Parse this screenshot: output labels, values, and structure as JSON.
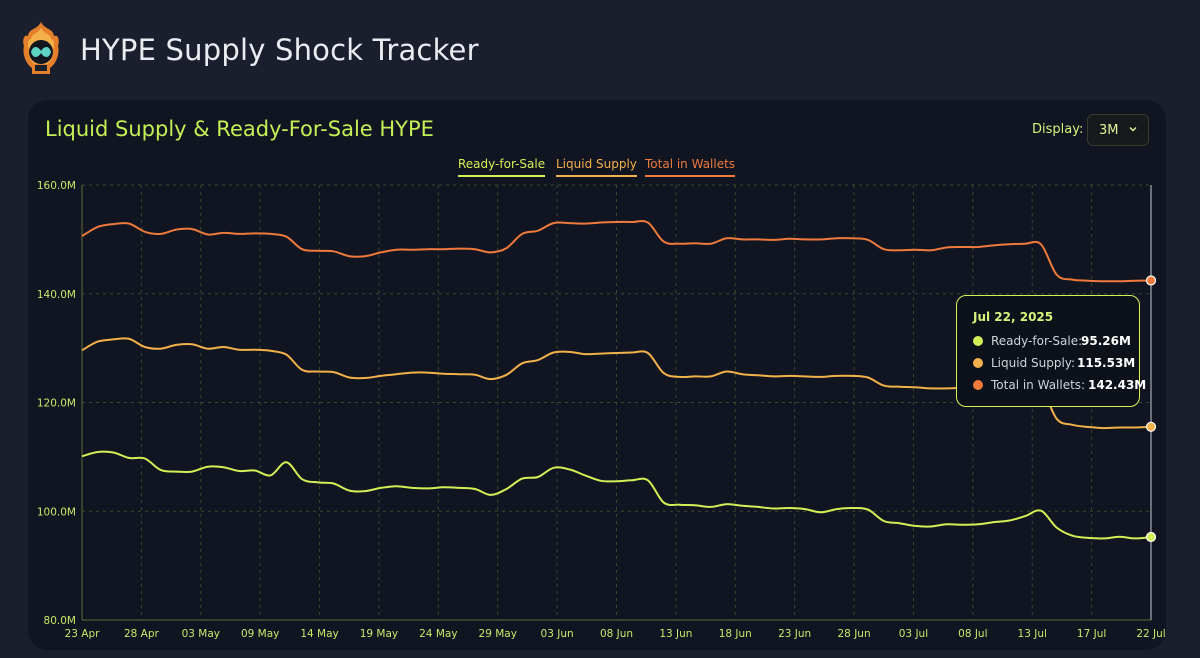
{
  "app": {
    "title": "HYPE Supply Shock Tracker"
  },
  "controls": {
    "display_label": "Display:",
    "display_value": "3M"
  },
  "colors": {
    "ready": "#d4ef56",
    "liquid": "#f3b14b",
    "total": "#ef7a3c",
    "axis_text": "#c9e86a"
  },
  "tooltip": {
    "date": "Jul 22, 2025",
    "rows": [
      {
        "label": "Ready-for-Sale:",
        "value": "95.26M"
      },
      {
        "label": "Liquid Supply:",
        "value": "115.53M"
      },
      {
        "label": "Total in Wallets:",
        "value": "142.43M"
      }
    ]
  },
  "chart_data": {
    "type": "line",
    "title": "Liquid Supply & Ready-For-Sale HYPE",
    "legend_position": "top-center",
    "grid": true,
    "ylim": [
      80,
      160
    ],
    "y_ticks": [
      "80.0M",
      "100.0M",
      "120.0M",
      "140.0M",
      "160.0M"
    ],
    "x_ticks": [
      "23 Apr",
      "28 Apr",
      "03 May",
      "09 May",
      "14 May",
      "19 May",
      "24 May",
      "29 May",
      "03 Jun",
      "08 Jun",
      "13 Jun",
      "18 Jun",
      "23 Jun",
      "28 Jun",
      "03 Jul",
      "08 Jul",
      "13 Jul",
      "17 Jul",
      "22 Jul"
    ],
    "series": [
      {
        "name": "Ready-for-Sale",
        "color": "#d4ef56",
        "values": [
          110.1,
          110.9,
          110.8,
          109.8,
          109.7,
          107.6,
          107.3,
          107.3,
          108.2,
          108.1,
          107.4,
          107.5,
          106.6,
          109.0,
          105.9,
          105.3,
          105.1,
          103.8,
          103.7,
          104.3,
          104.6,
          104.3,
          104.2,
          104.4,
          104.3,
          104.1,
          103.0,
          104.1,
          106.0,
          106.3,
          108.0,
          107.7,
          106.6,
          105.6,
          105.5,
          105.7,
          105.7,
          101.6,
          101.2,
          101.1,
          100.8,
          101.3,
          101.0,
          100.8,
          100.5,
          100.6,
          100.4,
          99.8,
          100.4,
          100.6,
          100.3,
          98.2,
          97.8,
          97.3,
          97.2,
          97.6,
          97.5,
          97.6,
          98.0,
          98.3,
          99.1,
          100.1,
          97.0,
          95.5,
          95.1,
          95.0,
          95.3,
          95.0,
          95.26
        ]
      },
      {
        "name": "Liquid Supply",
        "color": "#f3b14b",
        "values": [
          129.6,
          131.2,
          131.6,
          131.7,
          130.2,
          129.9,
          130.6,
          130.7,
          129.9,
          130.2,
          129.7,
          129.7,
          129.5,
          128.8,
          126.0,
          125.7,
          125.6,
          124.6,
          124.5,
          124.9,
          125.2,
          125.5,
          125.5,
          125.3,
          125.2,
          125.1,
          124.3,
          125.1,
          127.2,
          127.8,
          129.2,
          129.3,
          128.9,
          129.0,
          129.1,
          129.2,
          129.1,
          125.4,
          124.7,
          124.8,
          124.8,
          125.7,
          125.2,
          125.0,
          124.8,
          124.9,
          124.8,
          124.7,
          124.9,
          124.9,
          124.6,
          123.1,
          122.9,
          122.8,
          122.6,
          122.6,
          122.7,
          122.7,
          122.9,
          123.0,
          123.2,
          122.9,
          117.0,
          115.9,
          115.5,
          115.3,
          115.4,
          115.4,
          115.53
        ]
      },
      {
        "name": "Total in Wallets",
        "color": "#ef7a3c",
        "values": [
          150.6,
          152.3,
          152.8,
          152.9,
          151.4,
          151.0,
          151.8,
          151.9,
          150.9,
          151.2,
          151.0,
          151.1,
          151.0,
          150.5,
          148.2,
          147.9,
          147.8,
          146.9,
          146.9,
          147.6,
          148.1,
          148.1,
          148.2,
          148.2,
          148.3,
          148.2,
          147.6,
          148.4,
          151.0,
          151.6,
          153.0,
          153.0,
          152.9,
          153.1,
          153.2,
          153.2,
          153.1,
          149.6,
          149.2,
          149.3,
          149.2,
          150.2,
          150.0,
          150.0,
          149.9,
          150.1,
          150.0,
          150.0,
          150.2,
          150.2,
          149.9,
          148.2,
          148.0,
          148.1,
          148.0,
          148.5,
          148.6,
          148.6,
          148.9,
          149.1,
          149.2,
          149.1,
          143.5,
          142.6,
          142.4,
          142.3,
          142.3,
          142.4,
          142.43
        ]
      }
    ]
  }
}
